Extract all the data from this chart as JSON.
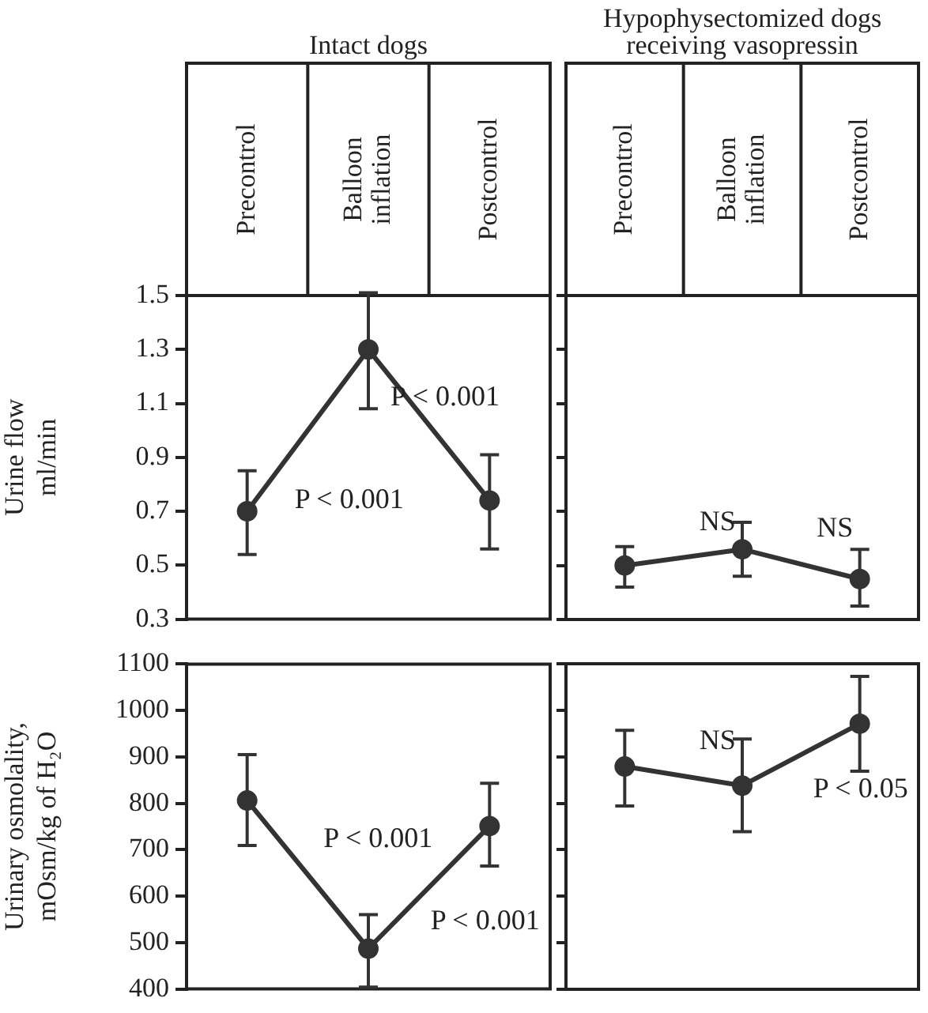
{
  "chart_data": [
    {
      "type": "line",
      "title": "Intact dogs",
      "categories": [
        "Precontrol",
        "Balloon inflation",
        "Postcontrol"
      ],
      "ylabel": "Urine flow\nml/min",
      "ylim": [
        0.3,
        1.5
      ],
      "yticks": [
        0.3,
        0.5,
        0.7,
        0.9,
        1.1,
        1.3,
        1.5
      ],
      "marker": "circle",
      "series": [
        {
          "color": "#333333",
          "values": [
            0.7,
            1.3,
            0.74
          ],
          "errors": [
            [
              0.54,
              0.85
            ],
            [
              1.08,
              1.51
            ],
            [
              0.56,
              0.91
            ]
          ]
        }
      ],
      "annotations": [
        {
          "text": "P < 0.001",
          "x": "Balloon inflation",
          "y": 1.12
        },
        {
          "text": "P < 0.001",
          "x": "Precontrol",
          "y": 0.74
        }
      ]
    },
    {
      "type": "line",
      "title": "Hypophysectomized dogs receiving vasopressin",
      "categories": [
        "Precontrol",
        "Balloon inflation",
        "Postcontrol"
      ],
      "ylim": [
        0.3,
        1.5
      ],
      "yticks": [
        {
          "value": 0.3,
          "label": null
        },
        {
          "value": 0.5,
          "label": null
        },
        {
          "value": 0.7,
          "label": null
        },
        {
          "value": 0.9,
          "label": null
        },
        {
          "value": 1.1,
          "label": null
        },
        {
          "value": 1.3,
          "label": null
        },
        {
          "value": 1.5,
          "label": null
        }
      ],
      "tick_labels": "x",
      "marker": "circle",
      "series": [
        {
          "color": "#333333",
          "values": [
            0.5,
            0.56,
            0.45
          ],
          "errors": [
            [
              0.42,
              0.57
            ],
            [
              0.46,
              0.66
            ],
            [
              0.35,
              0.56
            ]
          ]
        }
      ],
      "annotations": [
        "NS",
        "NS"
      ]
    },
    {
      "type": "line",
      "categories": [
        null,
        null,
        null
      ],
      "ylabel": "Urinary osmolality,\nmOsm/kg of H₂O",
      "ylim": [
        400,
        1100
      ],
      "yticks": [
        400,
        500,
        600,
        700,
        800,
        900,
        1000,
        1100
      ],
      "tick_labels": "y",
      "marker": "circle",
      "series": [
        {
          "color": "#333333",
          "values": [
            806,
            487,
            751
          ],
          "errors": [
            [
              709,
              905
            ],
            [
              404,
              560
            ],
            [
              665,
              843
            ]
          ]
        }
      ],
      "annotations": [
        "P < 0.001",
        "P < 0.001"
      ]
    },
    {
      "type": "line",
      "categories": [
        null,
        null,
        null
      ],
      "ylim": [
        400,
        1100
      ],
      "yticks": [
        {
          "value": 400,
          "label": null
        },
        {
          "value": 500,
          "label": null
        },
        {
          "value": 600,
          "label": null
        },
        {
          "value": 700,
          "label": null
        },
        {
          "value": 800,
          "label": null
        },
        {
          "value": 900,
          "label": null
        },
        {
          "value": 1000,
          "label": null
        },
        {
          "value": 1100,
          "label": null
        }
      ],
      "tick_labels": false,
      "marker": "circle",
      "series": [
        {
          "color": "#333333",
          "values": [
            879,
            838,
            971
          ],
          "errors": [
            [
              794,
              957
            ],
            [
              739,
              938
            ],
            [
              869,
              1073
            ]
          ]
        }
      ],
      "annotations": [
        "NS",
        "P < 0.05"
      ]
    }
  ]
}
